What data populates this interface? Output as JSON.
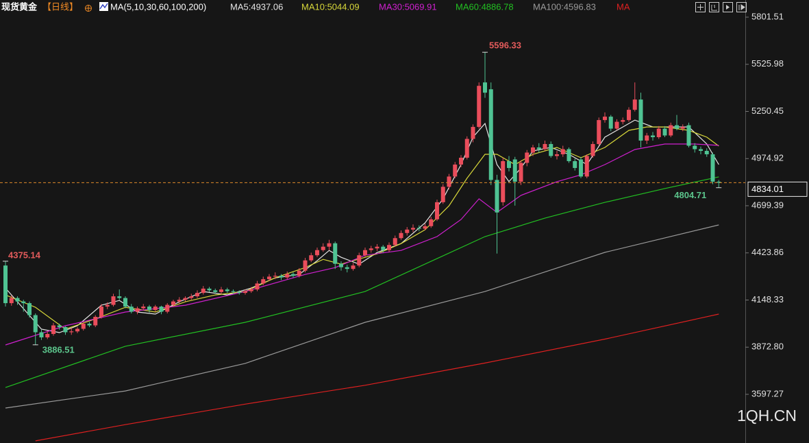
{
  "chart_data": {
    "type": "candlestick",
    "title": "现货黄金",
    "period": "【日线】",
    "indicator": "MA(5,10,30,60,100,200)",
    "watermark": "1QH.CN",
    "ylim": [
      3312.7,
      5901.7
    ],
    "yticks": [
      5801.51,
      5525.98,
      5250.45,
      4974.92,
      4699.39,
      4423.86,
      4148.33,
      {
        "value": 3872.8,
        "label": "3872.80"
      },
      3597.27
    ],
    "up_color": "#ea4d5b",
    "down_color": "#4fc393",
    "ohlc": [
      [
        4350,
        4375.14,
        4110,
        4130
      ],
      [
        4130,
        4175,
        4115,
        4160
      ],
      [
        4160,
        4170,
        4120,
        4140
      ],
      [
        4140,
        4150,
        4080,
        4130
      ],
      [
        4130,
        4140,
        4045,
        4060
      ],
      [
        4060,
        4070,
        3886.51,
        3960
      ],
      [
        3960,
        3975,
        3915,
        3930
      ],
      [
        3930,
        3965,
        3920,
        3950
      ],
      [
        3950,
        4015,
        3940,
        4000
      ],
      [
        4000,
        4010,
        3975,
        3990
      ],
      [
        3990,
        3995,
        3945,
        3960
      ],
      [
        3960,
        3985,
        3945,
        3965
      ],
      [
        3965,
        3990,
        3955,
        3980
      ],
      [
        3980,
        4020,
        3970,
        4010
      ],
      [
        4010,
        4020,
        3990,
        4000
      ],
      [
        4000,
        4060,
        3990,
        4050
      ],
      [
        4050,
        4125,
        4040,
        4110
      ],
      [
        4110,
        4135,
        4095,
        4120
      ],
      [
        4120,
        4185,
        4110,
        4170
      ],
      [
        4170,
        4210,
        4150,
        4160
      ],
      [
        4160,
        4170,
        4100,
        4110
      ],
      [
        4110,
        4125,
        4070,
        4080
      ],
      [
        4080,
        4110,
        4065,
        4100
      ],
      [
        4100,
        4125,
        4090,
        4110
      ],
      [
        4110,
        4120,
        4075,
        4090
      ],
      [
        4090,
        4120,
        4080,
        4110
      ],
      [
        4110,
        4115,
        4065,
        4080
      ],
      [
        4080,
        4130,
        4070,
        4120
      ],
      [
        4120,
        4150,
        4110,
        4140
      ],
      [
        4140,
        4165,
        4130,
        4150
      ],
      [
        4150,
        4170,
        4140,
        4160
      ],
      [
        4160,
        4185,
        4150,
        4170
      ],
      [
        4170,
        4205,
        4160,
        4190
      ],
      [
        4190,
        4230,
        4180,
        4215
      ],
      [
        4215,
        4225,
        4195,
        4205
      ],
      [
        4205,
        4215,
        4185,
        4195
      ],
      [
        4195,
        4225,
        4185,
        4210
      ],
      [
        4210,
        4220,
        4190,
        4200
      ],
      [
        4200,
        4210,
        4185,
        4195
      ],
      [
        4195,
        4205,
        4180,
        4190
      ],
      [
        4190,
        4210,
        4180,
        4200
      ],
      [
        4200,
        4225,
        4190,
        4210
      ],
      [
        4210,
        4260,
        4200,
        4245
      ],
      [
        4245,
        4285,
        4235,
        4270
      ],
      [
        4270,
        4300,
        4260,
        4285
      ],
      [
        4285,
        4310,
        4270,
        4290
      ],
      [
        4290,
        4300,
        4265,
        4280
      ],
      [
        4280,
        4315,
        4270,
        4300
      ],
      [
        4300,
        4310,
        4280,
        4290
      ],
      [
        4290,
        4335,
        4280,
        4320
      ],
      [
        4320,
        4395,
        4310,
        4380
      ],
      [
        4380,
        4425,
        4370,
        4410
      ],
      [
        4410,
        4455,
        4400,
        4440
      ],
      [
        4440,
        4480,
        4430,
        4460
      ],
      [
        4460,
        4500,
        4440,
        4480
      ],
      [
        4480,
        4490,
        4330,
        4360
      ],
      [
        4360,
        4375,
        4320,
        4340
      ],
      [
        4340,
        4355,
        4310,
        4330
      ],
      [
        4330,
        4365,
        4320,
        4350
      ],
      [
        4350,
        4425,
        4340,
        4410
      ],
      [
        4410,
        4455,
        4400,
        4440
      ],
      [
        4440,
        4465,
        4425,
        4450
      ],
      [
        4450,
        4475,
        4435,
        4460
      ],
      [
        4460,
        4470,
        4425,
        4440
      ],
      [
        4440,
        4485,
        4430,
        4470
      ],
      [
        4470,
        4525,
        4460,
        4510
      ],
      [
        4510,
        4555,
        4500,
        4540
      ],
      [
        4540,
        4575,
        4525,
        4560
      ],
      [
        4560,
        4590,
        4545,
        4570
      ],
      [
        4570,
        4585,
        4550,
        4565
      ],
      [
        4565,
        4595,
        4555,
        4580
      ],
      [
        4580,
        4635,
        4570,
        4620
      ],
      [
        4620,
        4735,
        4610,
        4720
      ],
      [
        4720,
        4825,
        4710,
        4810
      ],
      [
        4810,
        4885,
        4795,
        4870
      ],
      [
        4870,
        4955,
        4860,
        4940
      ],
      [
        4940,
        4995,
        4925,
        4980
      ],
      [
        4980,
        5105,
        4970,
        5090
      ],
      [
        5090,
        5175,
        5070,
        5160
      ],
      [
        5160,
        5420,
        5150,
        5400
      ],
      [
        5420,
        5596.33,
        5330,
        5360
      ],
      [
        5380,
        5420,
        4820,
        4850
      ],
      [
        4850,
        4880,
        4420,
        4660
      ],
      [
        4720,
        4980,
        4700,
        4960
      ],
      [
        4960,
        4990,
        4900,
        4920
      ],
      [
        4970,
        4985,
        4700,
        4840
      ],
      [
        4840,
        4965,
        4820,
        4950
      ],
      [
        4950,
        5025,
        4930,
        5010
      ],
      [
        5010,
        5055,
        4990,
        5040
      ],
      [
        5040,
        5065,
        5010,
        5030
      ],
      [
        5030,
        5080,
        5020,
        5060
      ],
      [
        5060,
        5075,
        4980,
        4990
      ],
      [
        4990,
        5020,
        4970,
        5000
      ],
      [
        5000,
        5050,
        4985,
        5030
      ],
      [
        5030,
        5040,
        4950,
        4960
      ],
      [
        4960,
        4975,
        4905,
        4920
      ],
      [
        4970,
        4985,
        4860,
        4870
      ],
      [
        4870,
        5000,
        4860,
        4990
      ],
      [
        4990,
        5075,
        4980,
        5060
      ],
      [
        5060,
        5215,
        5050,
        5200
      ],
      [
        5200,
        5245,
        5185,
        5220
      ],
      [
        5220,
        5230,
        5135,
        5150
      ],
      [
        5150,
        5205,
        5140,
        5190
      ],
      [
        5190,
        5215,
        5175,
        5200
      ],
      [
        5200,
        5275,
        5190,
        5260
      ],
      [
        5260,
        5420,
        5250,
        5320
      ],
      [
        5320,
        5360,
        5040,
        5080
      ],
      [
        5080,
        5125,
        5060,
        5110
      ],
      [
        5110,
        5130,
        5080,
        5100
      ],
      [
        5100,
        5165,
        5090,
        5150
      ],
      [
        5150,
        5165,
        5100,
        5110
      ],
      [
        5110,
        5185,
        5100,
        5170
      ],
      [
        5170,
        5230,
        5140,
        5150
      ],
      [
        5150,
        5175,
        5135,
        5160
      ],
      [
        5170,
        5185,
        5040,
        5050
      ],
      [
        5050,
        5065,
        5010,
        5030
      ],
      [
        5030,
        5045,
        5000,
        5020
      ],
      [
        5020,
        5035,
        4985,
        5000
      ],
      [
        5000,
        5010,
        4825,
        4840
      ],
      [
        4840,
        4850,
        4804.71,
        4834.01
      ]
    ],
    "series": [
      {
        "name": "MA5:4937.06",
        "color": "#e6e6e6",
        "x": [
          0,
          3,
          6,
          9,
          12,
          16,
          19,
          22,
          25,
          29,
          33,
          37,
          41,
          45,
          49,
          52,
          54,
          56,
          59,
          62,
          66,
          70,
          73,
          76,
          78,
          80,
          82,
          84,
          86,
          88,
          91,
          94,
          97,
          100,
          103,
          105,
          108,
          111,
          114,
          117,
          119
        ],
        "values": [
          4218,
          4098,
          3978,
          3958,
          3998,
          4118,
          4146,
          4078,
          4066,
          4138,
          4198,
          4178,
          4218,
          4278,
          4298,
          4378,
          4438,
          4398,
          4358,
          4426,
          4478,
          4599,
          4740,
          4940,
          5100,
          5180,
          4940,
          4840,
          4920,
          5020,
          5040,
          5000,
          4940,
          5100,
          5160,
          5200,
          5160,
          5160,
          5160,
          5060,
          4940
        ]
      },
      {
        "name": "MA10:5044.09",
        "color": "#d8d83a",
        "x": [
          0,
          5,
          10,
          15,
          20,
          25,
          30,
          35,
          40,
          45,
          50,
          53,
          56,
          58,
          62,
          66,
          70,
          74,
          77,
          80,
          82,
          85,
          88,
          92,
          96,
          100,
          104,
          107,
          110,
          114,
          117,
          119
        ],
        "values": [
          4178,
          4106,
          3978,
          4038,
          4106,
          4078,
          4138,
          4178,
          4198,
          4278,
          4338,
          4386,
          4358,
          4378,
          4418,
          4478,
          4559,
          4699,
          4860,
          5000,
          5000,
          4940,
          5000,
          5040,
          4980,
          5040,
          5140,
          5160,
          5160,
          5140,
          5100,
          5048
        ]
      },
      {
        "name": "MA30:5069.91",
        "color": "#d020d0",
        "x": [
          0,
          10,
          20,
          30,
          40,
          50,
          55,
          60,
          66,
          72,
          76,
          79,
          82,
          86,
          92,
          96,
          100,
          105,
          110,
          115,
          119
        ],
        "values": [
          3886,
          3998,
          4078,
          4118,
          4198,
          4298,
          4338,
          4410,
          4438,
          4519,
          4619,
          4740,
          4660,
          4760,
          4840,
          4880,
          4940,
          5028,
          5060,
          5060,
          5052
        ]
      },
      {
        "name": "MA60:4886.78",
        "color": "#22c022",
        "x": [
          0,
          20,
          40,
          60,
          80,
          90,
          100,
          110,
          119
        ],
        "values": [
          3637,
          3878,
          4018,
          4198,
          4519,
          4627,
          4719,
          4800,
          4868
        ]
      },
      {
        "name": "MA100:4596.83",
        "color": "#9a9a9a",
        "x": [
          0,
          20,
          40,
          60,
          80,
          100,
          119
        ],
        "values": [
          3517,
          3617,
          3778,
          4018,
          4198,
          4427,
          4587
        ]
      },
      {
        "name": "MA",
        "color": "#e02020",
        "x": [
          5,
          20,
          40,
          60,
          80,
          100,
          119
        ],
        "values": [
          3325,
          3420,
          3540,
          3650,
          3780,
          3920,
          4066
        ]
      }
    ]
  }
}
